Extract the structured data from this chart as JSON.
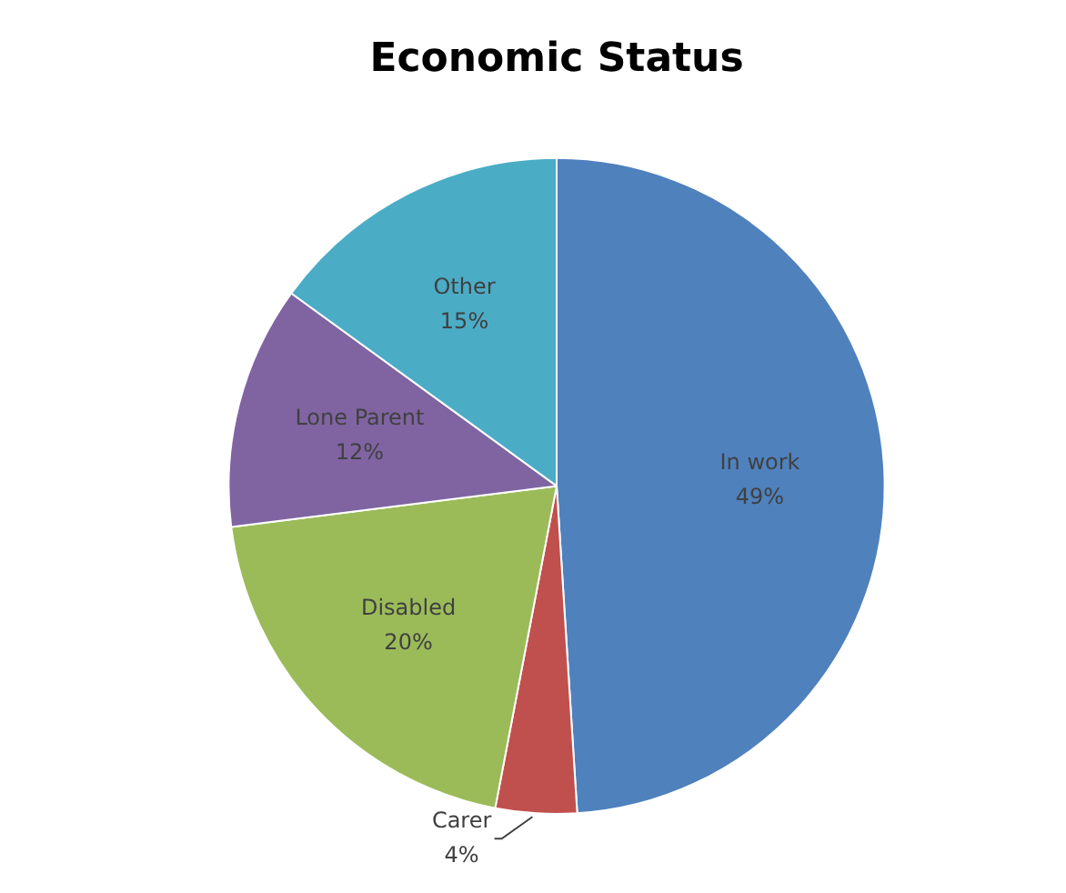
{
  "chart_data": {
    "type": "pie",
    "title": "Economic Status",
    "categories": [
      "In work",
      "Carer",
      "Disabled",
      "Lone Parent",
      "Other"
    ],
    "values": [
      49,
      4,
      20,
      12,
      15
    ],
    "value_labels": [
      "49%",
      "4%",
      "20%",
      "12%",
      "15%"
    ],
    "colors": [
      "#4f81bd",
      "#c0504d",
      "#9bbb59",
      "#8064a2",
      "#4bacc6"
    ],
    "legend": false
  }
}
